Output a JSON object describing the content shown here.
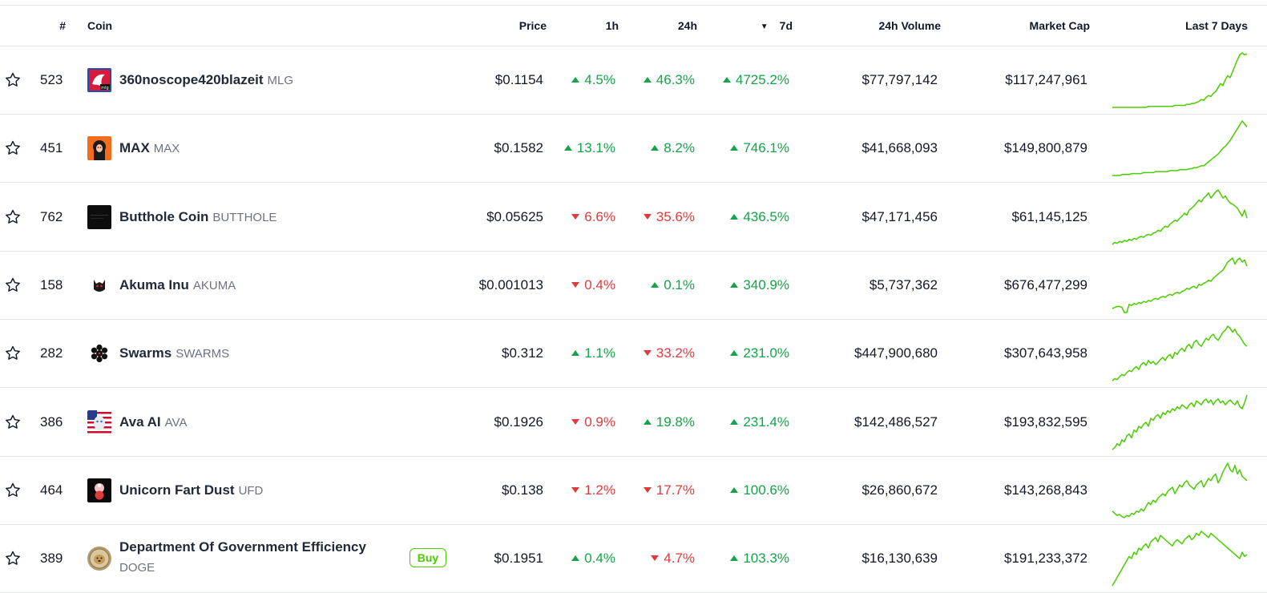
{
  "header": {
    "rank": "#",
    "coin": "Coin",
    "price": "Price",
    "h1": "1h",
    "h24": "24h",
    "d7_sort_indicator": "▼",
    "d7": "7d",
    "volume": "24h Volume",
    "market_cap": "Market Cap",
    "last7": "Last 7 Days"
  },
  "colors": {
    "up": "#16a34a",
    "down": "#e03b3b",
    "sparkline": "#4bcc00",
    "buy": "#4bcc00"
  },
  "rows": [
    {
      "rank": "523",
      "name": "360noscope420blazeit",
      "symbol": "MLG",
      "price": "$0.1154",
      "h1": {
        "dir": "up",
        "text": "4.5%"
      },
      "h24": {
        "dir": "up",
        "text": "46.3%"
      },
      "d7": {
        "dir": "up",
        "text": "4725.2%"
      },
      "volume": "$77,797,142",
      "market_cap": "$117,247,961",
      "logo_icon": "mlg-logo-icon",
      "spark": [
        2,
        2,
        2,
        2,
        2,
        2,
        2,
        2,
        2,
        2,
        2,
        2,
        2,
        2,
        2,
        3,
        3,
        3,
        3,
        3,
        3,
        3,
        3,
        3,
        3,
        3,
        4,
        4,
        4,
        4,
        4,
        5,
        5,
        6,
        6,
        7,
        8,
        10,
        9,
        12,
        14,
        13,
        16,
        18,
        22,
        26,
        24,
        30,
        34,
        32,
        38,
        44,
        50,
        55,
        57,
        55,
        56
      ]
    },
    {
      "rank": "451",
      "name": "MAX",
      "symbol": "MAX",
      "price": "$0.1582",
      "h1": {
        "dir": "up",
        "text": "13.1%"
      },
      "h24": {
        "dir": "up",
        "text": "8.2%"
      },
      "d7": {
        "dir": "up",
        "text": "746.1%"
      },
      "volume": "$41,668,093",
      "market_cap": "$149,800,879",
      "logo_icon": "max-logo-icon",
      "spark": [
        2,
        2,
        2,
        2,
        3,
        3,
        3,
        3,
        4,
        4,
        4,
        4,
        4,
        5,
        5,
        5,
        5,
        5,
        6,
        6,
        6,
        6,
        6,
        6,
        7,
        7,
        7,
        7,
        8,
        8,
        8,
        8,
        9,
        9,
        10,
        10,
        11,
        12,
        12,
        14,
        16,
        18,
        20,
        22,
        24,
        27,
        30,
        32,
        35,
        38,
        42,
        46,
        50,
        54,
        58,
        55,
        52
      ]
    },
    {
      "rank": "762",
      "name": "Butthole Coin",
      "symbol": "BUTTHOLE",
      "price": "$0.05625",
      "h1": {
        "dir": "down",
        "text": "6.6%"
      },
      "h24": {
        "dir": "down",
        "text": "35.6%"
      },
      "d7": {
        "dir": "up",
        "text": "436.5%"
      },
      "volume": "$47,171,456",
      "market_cap": "$61,145,125",
      "logo_icon": "butthole-logo-icon",
      "spark": [
        4,
        6,
        5,
        7,
        6,
        8,
        7,
        9,
        8,
        10,
        9,
        11,
        12,
        11,
        13,
        14,
        13,
        15,
        16,
        18,
        17,
        20,
        22,
        21,
        24,
        26,
        28,
        27,
        30,
        32,
        35,
        33,
        38,
        40,
        42,
        45,
        48,
        46,
        50,
        52,
        55,
        50,
        53,
        56,
        58,
        54,
        50,
        52,
        48,
        45,
        44,
        42,
        40,
        36,
        32,
        38,
        30
      ]
    },
    {
      "rank": "158",
      "name": "Akuma Inu",
      "symbol": "AKUMA",
      "price": "$0.001013",
      "h1": {
        "dir": "down",
        "text": "0.4%"
      },
      "h24": {
        "dir": "up",
        "text": "0.1%"
      },
      "d7": {
        "dir": "up",
        "text": "340.9%"
      },
      "volume": "$5,737,362",
      "market_cap": "$676,477,299",
      "logo_icon": "akuma-logo-icon",
      "spark": [
        8,
        9,
        10,
        10,
        9,
        4,
        4,
        12,
        11,
        13,
        12,
        14,
        13,
        15,
        14,
        16,
        15,
        17,
        18,
        17,
        19,
        20,
        19,
        21,
        22,
        21,
        23,
        24,
        23,
        25,
        26,
        28,
        27,
        29,
        30,
        28,
        32,
        31,
        33,
        34,
        36,
        35,
        38,
        40,
        42,
        44,
        46,
        50,
        54,
        56,
        58,
        52,
        56,
        58,
        54,
        56,
        50
      ]
    },
    {
      "rank": "282",
      "name": "Swarms",
      "symbol": "SWARMS",
      "price": "$0.312",
      "h1": {
        "dir": "up",
        "text": "1.1%"
      },
      "h24": {
        "dir": "down",
        "text": "33.2%"
      },
      "d7": {
        "dir": "up",
        "text": "231.0%"
      },
      "volume": "$447,900,680",
      "market_cap": "$307,643,958",
      "logo_icon": "swarms-logo-icon",
      "spark": [
        4,
        6,
        5,
        8,
        10,
        9,
        12,
        14,
        13,
        16,
        18,
        15,
        20,
        22,
        19,
        24,
        21,
        23,
        20,
        22,
        25,
        27,
        24,
        28,
        30,
        26,
        32,
        30,
        34,
        36,
        33,
        38,
        40,
        36,
        42,
        44,
        40,
        38,
        42,
        46,
        44,
        48,
        50,
        46,
        44,
        48,
        52,
        54,
        58,
        56,
        52,
        55,
        50,
        48,
        44,
        40,
        38
      ]
    },
    {
      "rank": "386",
      "name": "Ava AI",
      "symbol": "AVA",
      "price": "$0.1926",
      "h1": {
        "dir": "down",
        "text": "0.9%"
      },
      "h24": {
        "dir": "up",
        "text": "19.8%"
      },
      "d7": {
        "dir": "up",
        "text": "231.4%"
      },
      "volume": "$142,486,527",
      "market_cap": "$193,832,595",
      "logo_icon": "ava-logo-icon",
      "spark": [
        4,
        6,
        10,
        8,
        14,
        12,
        18,
        20,
        16,
        24,
        22,
        28,
        26,
        30,
        32,
        28,
        36,
        34,
        38,
        40,
        36,
        42,
        40,
        44,
        42,
        46,
        44,
        48,
        46,
        50,
        48,
        46,
        50,
        52,
        48,
        54,
        52,
        50,
        54,
        56,
        52,
        55,
        50,
        54,
        56,
        52,
        54,
        50,
        53,
        55,
        52,
        50,
        54,
        48,
        46,
        52,
        60
      ]
    },
    {
      "rank": "464",
      "name": "Unicorn Fart Dust",
      "symbol": "UFD",
      "price": "$0.138",
      "h1": {
        "dir": "down",
        "text": "1.2%"
      },
      "h24": {
        "dir": "down",
        "text": "17.7%"
      },
      "d7": {
        "dir": "up",
        "text": "100.6%"
      },
      "volume": "$26,860,672",
      "market_cap": "$143,268,843",
      "logo_icon": "ufd-logo-icon",
      "spark": [
        14,
        12,
        10,
        11,
        9,
        8,
        10,
        9,
        12,
        11,
        14,
        13,
        16,
        14,
        18,
        22,
        20,
        24,
        22,
        26,
        28,
        30,
        28,
        32,
        34,
        36,
        30,
        34,
        38,
        36,
        40,
        42,
        38,
        36,
        34,
        38,
        40,
        42,
        36,
        40,
        44,
        42,
        46,
        48,
        40,
        44,
        50,
        54,
        58,
        52,
        50,
        56,
        48,
        52,
        46,
        44,
        42
      ]
    },
    {
      "rank": "389",
      "name": "Department Of Government Efficiency",
      "symbol": "DOGE",
      "buy_label": "Buy",
      "price": "$0.1951",
      "h1": {
        "dir": "up",
        "text": "0.4%"
      },
      "h24": {
        "dir": "down",
        "text": "4.7%"
      },
      "d7": {
        "dir": "up",
        "text": "103.3%"
      },
      "volume": "$16,130,639",
      "market_cap": "$191,233,372",
      "logo_icon": "doge-logo-icon",
      "spark": [
        2,
        6,
        10,
        14,
        18,
        22,
        26,
        30,
        28,
        34,
        32,
        38,
        36,
        40,
        42,
        38,
        44,
        46,
        48,
        44,
        50,
        48,
        46,
        44,
        42,
        40,
        44,
        46,
        44,
        42,
        46,
        48,
        50,
        46,
        48,
        52,
        50,
        54,
        52,
        50,
        48,
        52,
        50,
        48,
        46,
        44,
        42,
        40,
        38,
        36,
        34,
        32,
        30,
        28,
        34,
        30,
        32
      ]
    }
  ]
}
